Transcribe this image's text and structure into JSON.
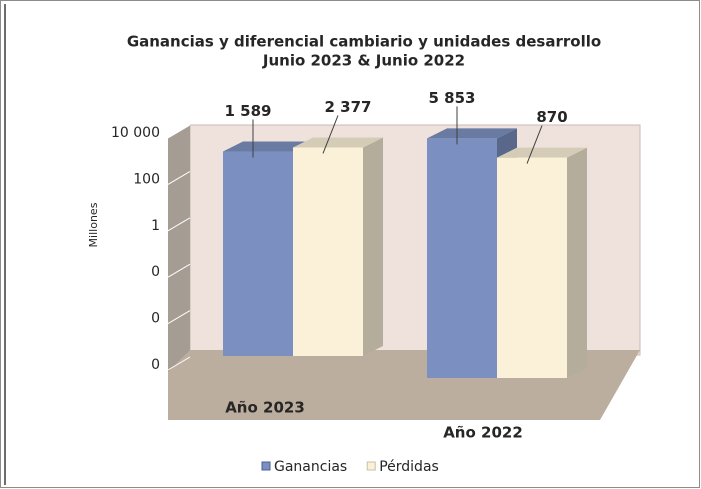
{
  "chart_data": {
    "type": "bar",
    "title": "Ganancias y diferencial cambiario y unidades desarrollo",
    "subtitle": "Junio 2023 & Junio 2022",
    "y_label": "Millones",
    "categories": [
      "Año 2023",
      "Año 2022"
    ],
    "series": [
      {
        "name": "Ganancias",
        "color": "#7b8fc0",
        "values": [
          1589,
          5853
        ],
        "value_labels": [
          "1 589",
          "5 853"
        ]
      },
      {
        "name": "Pérdidas",
        "color": "#fbf0d8",
        "values": [
          2377,
          870
        ],
        "value_labels": [
          "2 377",
          "870"
        ]
      }
    ],
    "log_scale": true,
    "ylim": [
      1e-06,
      10000
    ],
    "yticks": [
      {
        "value": 1e-06,
        "label": "0"
      },
      {
        "value": 0.0001,
        "label": "0"
      },
      {
        "value": 0.01,
        "label": "0"
      },
      1,
      100,
      {
        "value": 10000,
        "label": "10 000"
      }
    ],
    "grid": true,
    "legend": "bottom"
  }
}
